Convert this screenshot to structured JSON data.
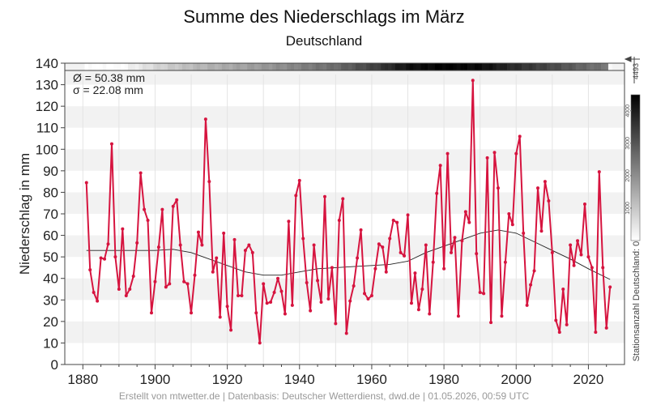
{
  "header": {
    "title": "Summe des Niederschlags im März",
    "subtitle": "Deutschland"
  },
  "stats": {
    "mean": "Ø = 50.38 mm",
    "std": "σ = 22.08 mm"
  },
  "footer": "Erstellt von mtwetter.de | Datenbasis: Deutscher Wetterdienst, dwd.de | 01.05.2026, 00:59 UTC",
  "colors": {
    "series": "#d6143f",
    "trend": "#222222",
    "band": "#f2f2f2"
  },
  "chart_data": {
    "type": "line",
    "title": "Summe des Niederschlags im März",
    "subtitle": "Deutschland",
    "ylabel": "Niederschlag in mm",
    "xlabel": "",
    "xlim": [
      1875,
      2030
    ],
    "ylim": [
      0,
      140
    ],
    "xticks": [
      1880,
      1900,
      1920,
      1940,
      1960,
      1980,
      2000,
      2020
    ],
    "yticks": [
      0,
      10,
      20,
      30,
      40,
      50,
      60,
      70,
      80,
      90,
      100,
      110,
      120,
      130,
      140
    ],
    "grid": true,
    "series": [
      {
        "x": [
          1881,
          1882,
          1883,
          1884,
          1885,
          1886,
          1887,
          1888,
          1889,
          1890,
          1891,
          1892,
          1893,
          1894,
          1895,
          1896,
          1897,
          1898,
          1899,
          1900,
          1901,
          1902,
          1903,
          1904,
          1905,
          1906,
          1907,
          1908,
          1909,
          1910,
          1911,
          1912,
          1913,
          1914,
          1915,
          1916,
          1917,
          1918,
          1919,
          1920,
          1921,
          1922,
          1923,
          1924,
          1925,
          1926,
          1927,
          1928,
          1929,
          1930,
          1931,
          1932,
          1933,
          1934,
          1935,
          1936,
          1937,
          1938,
          1939,
          1940,
          1941,
          1942,
          1943,
          1944,
          1945,
          1946,
          1947,
          1948,
          1949,
          1950,
          1951,
          1952,
          1953,
          1954,
          1955,
          1956,
          1957,
          1958,
          1959,
          1960,
          1961,
          1962,
          1963,
          1964,
          1965,
          1966,
          1967,
          1968,
          1969,
          1970,
          1971,
          1972,
          1973,
          1974,
          1975,
          1976,
          1977,
          1978,
          1979,
          1980,
          1981,
          1982,
          1983,
          1984,
          1985,
          1986,
          1987,
          1988,
          1989,
          1990,
          1991,
          1992,
          1993,
          1994,
          1995,
          1996,
          1997,
          1998,
          1999,
          2000,
          2001,
          2002,
          2003,
          2004,
          2005,
          2006,
          2007,
          2008,
          2009,
          2010,
          2011,
          2012,
          2013,
          2014,
          2015,
          2016,
          2017,
          2018,
          2019,
          2020,
          2021,
          2022,
          2023,
          2024,
          2025,
          2026
        ],
        "values": [
          84.5,
          44,
          33.5,
          29.5,
          49.5,
          49,
          56,
          102.5,
          50,
          35,
          63,
          32,
          35,
          41,
          56.5,
          89,
          72,
          67,
          24,
          38.5,
          54.5,
          72,
          36,
          37.5,
          73.5,
          76.5,
          55.5,
          38.5,
          37.5,
          24,
          41.5,
          61.5,
          55.5,
          114,
          85,
          43,
          49.5,
          22,
          61,
          27,
          16,
          58,
          32,
          32,
          53,
          55.5,
          52,
          24,
          10,
          37.5,
          28.5,
          29,
          33.5,
          40,
          34,
          23.5,
          66.5,
          27.5,
          78.5,
          85.5,
          58.5,
          38,
          25,
          55.5,
          39,
          29,
          78,
          30.5,
          45,
          19,
          67,
          77,
          14.5,
          29.5,
          36.5,
          49.5,
          62.5,
          33,
          30.5,
          32,
          44.5,
          56,
          54.5,
          43,
          58.5,
          67,
          66,
          52,
          50.5,
          69.5,
          28.5,
          42.5,
          25.5,
          35,
          55.5,
          23.5,
          47.5,
          79.5,
          92.5,
          44.5,
          98,
          52,
          59,
          22.5,
          57.5,
          71,
          66,
          132,
          51.5,
          33.5,
          33,
          96,
          19.5,
          98.5,
          82,
          22.5,
          47.5,
          70,
          65,
          98,
          106,
          61,
          27.5,
          37,
          43.5,
          82,
          62,
          85,
          76,
          52,
          20.5,
          15,
          35,
          18.5,
          55.5,
          46,
          57.5,
          51,
          74.5,
          50,
          45,
          15,
          89.5,
          45,
          17,
          36
        ]
      }
    ],
    "trend": {
      "x": [
        1881,
        1890,
        1900,
        1905,
        1910,
        1915,
        1920,
        1925,
        1930,
        1935,
        1940,
        1945,
        1950,
        1955,
        1960,
        1965,
        1970,
        1975,
        1980,
        1985,
        1990,
        1995,
        2000,
        2005,
        2010,
        2015,
        2020,
        2026
      ],
      "values": [
        53,
        53,
        53,
        53.5,
        52,
        49,
        46,
        43,
        41.5,
        41.5,
        43,
        44.5,
        45,
        45.5,
        46,
        46.5,
        48,
        52,
        55,
        58,
        61,
        62.5,
        61,
        57,
        53,
        49,
        44.5,
        39.5
      ]
    },
    "station_bar": {
      "label": "Stationsanzahl Deutschland: 0",
      "max_label": "4493",
      "scale_ticks": [
        "1000",
        "2000",
        "3000",
        "4000"
      ],
      "scale_max": 4493,
      "years": [
        1881,
        1890,
        1900,
        1910,
        1920,
        1930,
        1940,
        1950,
        1960,
        1970,
        1980,
        1990,
        2000,
        2010,
        2020,
        2025,
        2026
      ],
      "counts": [
        0,
        0,
        700,
        1200,
        1500,
        1800,
        2200,
        2600,
        3300,
        4200,
        4450,
        4300,
        3700,
        3200,
        2600,
        2400,
        0
      ]
    }
  }
}
